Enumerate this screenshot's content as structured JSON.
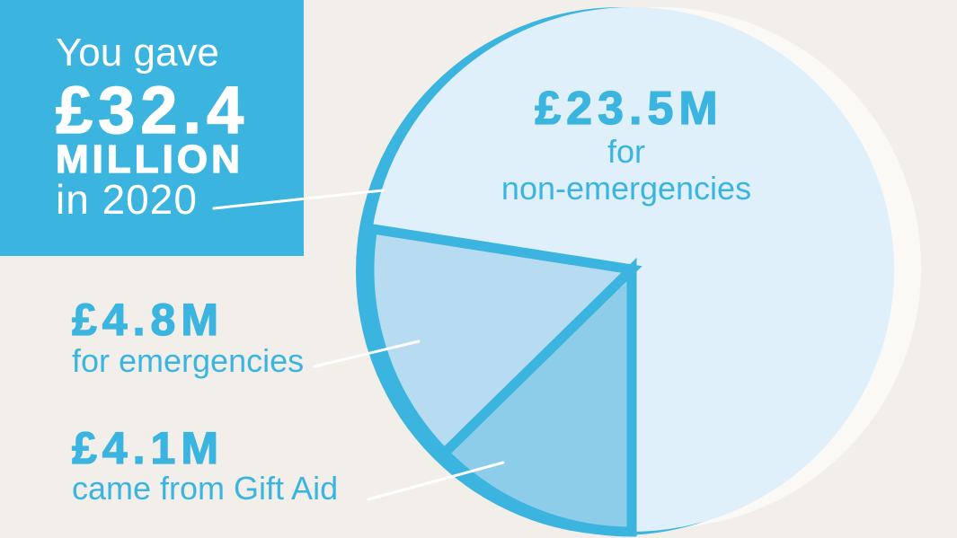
{
  "colors": {
    "background": "#f2efea",
    "accent": "#3bb5df",
    "box_text": "#ffffff",
    "pie_edge_shadow": "#fbf9f6",
    "leader_line": "#ffffff"
  },
  "headline": {
    "line1": "You gave",
    "amount": "£32.4",
    "unit": "MILLION",
    "line4": "in 2020"
  },
  "chart_data": {
    "type": "pie",
    "slices": [
      {
        "value": 23.5,
        "value_label": "£23.5M",
        "label_lines": [
          "for",
          "non-emergencies"
        ],
        "color": "#dff0fa"
      },
      {
        "value": 4.8,
        "value_label": "£4.8M",
        "label_lines": [
          "for emergencies"
        ],
        "color": "#b7dcf1"
      },
      {
        "value": 4.1,
        "value_label": "£4.1M",
        "label_lines": [
          "came from Gift Aid"
        ],
        "color": "#8ecde9"
      }
    ]
  }
}
